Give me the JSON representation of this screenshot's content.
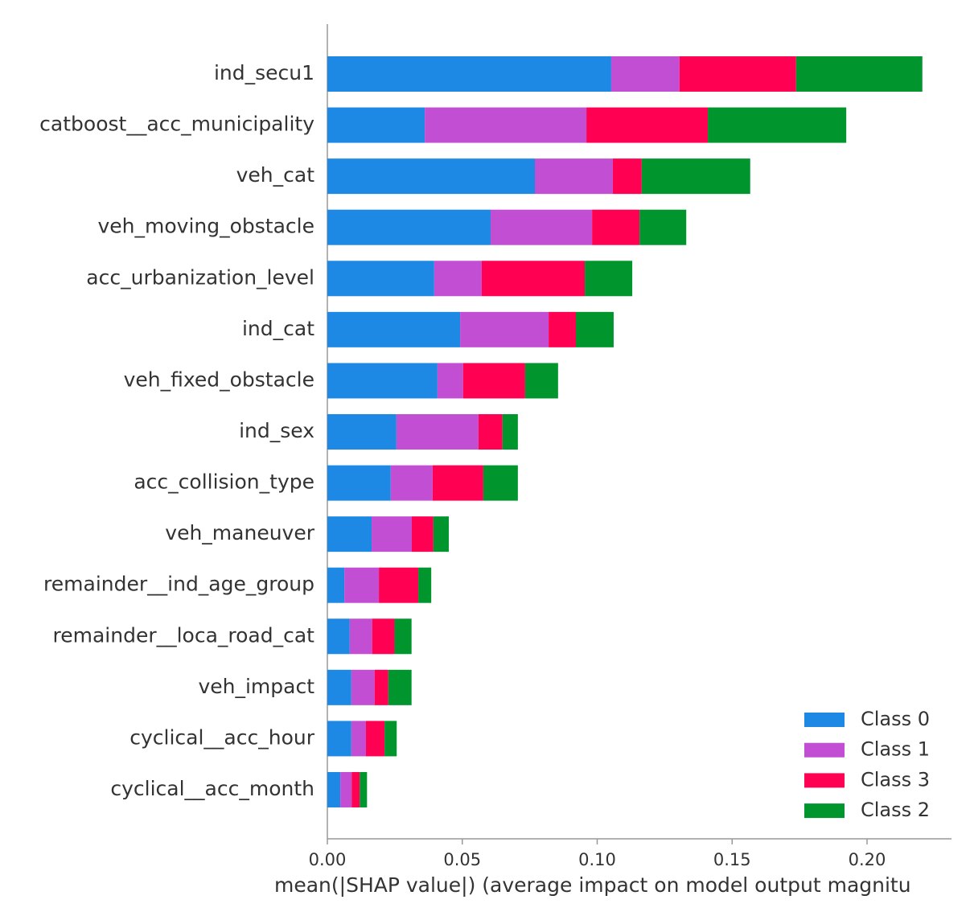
{
  "chart_data": {
    "type": "stacked_barh",
    "xlabel": "mean(|SHAP value|) (average impact on model output magnitu",
    "categories": [
      "ind_secu1",
      "catboost__acc_municipality",
      "veh_cat",
      "veh_moving_obstacle",
      "acc_urbanization_level",
      "ind_cat",
      "veh_fixed_obstacle",
      "ind_sex",
      "acc_collision_type",
      "veh_maneuver",
      "remainder__ind_age_group",
      "remainder__loca_road_cat",
      "veh_impact",
      "cyclical__acc_hour",
      "cyclical__acc_month"
    ],
    "series": [
      {
        "name": "Class 0",
        "color": "#1e88e5",
        "values": [
          0.1052,
          0.0361,
          0.0769,
          0.0605,
          0.0396,
          0.0492,
          0.0408,
          0.0256,
          0.0235,
          0.0164,
          0.0063,
          0.0083,
          0.0089,
          0.0089,
          0.0048
        ]
      },
      {
        "name": "Class 1",
        "color": "#c24fd3",
        "values": [
          0.0253,
          0.0599,
          0.0289,
          0.0376,
          0.0176,
          0.0328,
          0.0095,
          0.0304,
          0.0155,
          0.0149,
          0.0128,
          0.0083,
          0.0086,
          0.0054,
          0.0042
        ]
      },
      {
        "name": "Class 3",
        "color": "#ff0052",
        "values": [
          0.0432,
          0.045,
          0.0107,
          0.0176,
          0.0382,
          0.0101,
          0.023,
          0.0089,
          0.0188,
          0.008,
          0.0146,
          0.0083,
          0.0051,
          0.0069,
          0.003
        ]
      },
      {
        "name": "Class 2",
        "color": "#00962d",
        "values": [
          0.0468,
          0.0513,
          0.0402,
          0.0173,
          0.0176,
          0.014,
          0.0122,
          0.0057,
          0.0128,
          0.0057,
          0.0048,
          0.0063,
          0.0086,
          0.0045,
          0.0027
        ]
      }
    ],
    "xlim": [
      0,
      0.2313
    ],
    "xticks": [
      {
        "value": 0,
        "label": "0.00"
      },
      {
        "value": 0.05,
        "label": "0.05"
      },
      {
        "value": 0.1,
        "label": "0.10"
      },
      {
        "value": 0.15,
        "label": "0.15"
      },
      {
        "value": 0.2,
        "label": "0.20"
      }
    ],
    "legend": "lower right"
  }
}
